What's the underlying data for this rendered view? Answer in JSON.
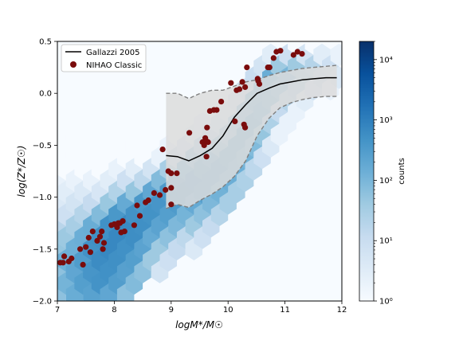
{
  "chart_data": {
    "type": "scatter",
    "title": "",
    "xlabel": "logM*/M☉",
    "ylabel": "log(Z*/Z☉)",
    "xlim": [
      7,
      12
    ],
    "ylim": [
      -2.0,
      0.5
    ],
    "xticks": [
      7,
      8,
      9,
      10,
      11,
      12
    ],
    "xtick_labels": [
      "7",
      "8",
      "9",
      "10",
      "11",
      "12"
    ],
    "yticks": [
      0.5,
      0.0,
      -0.5,
      -1.0,
      -1.5,
      -2.0
    ],
    "ytick_labels": [
      "0.5",
      "0.0",
      "−0.5",
      "−1.0",
      "−1.5",
      "−2.0"
    ],
    "grid": false,
    "legend": {
      "placement": "top-left",
      "entries": [
        {
          "label": "Gallazzi 2005",
          "kind": "line",
          "color": "#000000"
        },
        {
          "label": "NIHAO Classic",
          "kind": "marker",
          "color": "#7a0c0c"
        }
      ]
    },
    "colorbar": {
      "label": "counts",
      "scale": "log",
      "range": [
        1,
        20000
      ],
      "tick_labels": [
        "10⁰",
        "10¹",
        "10²",
        "10³",
        "10⁴"
      ],
      "cmap": "Blues"
    },
    "gallazzi_2005": {
      "median": [
        [
          8.91,
          -0.6
        ],
        [
          9.11,
          -0.61
        ],
        [
          9.31,
          -0.65
        ],
        [
          9.51,
          -0.6
        ],
        [
          9.72,
          -0.53
        ],
        [
          9.91,
          -0.41
        ],
        [
          10.11,
          -0.23
        ],
        [
          10.31,
          -0.11
        ],
        [
          10.51,
          0.0
        ],
        [
          10.72,
          0.05
        ],
        [
          10.91,
          0.09
        ],
        [
          11.11,
          0.11
        ],
        [
          11.31,
          0.13
        ],
        [
          11.51,
          0.14
        ],
        [
          11.72,
          0.15
        ],
        [
          11.91,
          0.15
        ]
      ],
      "p84": [
        [
          8.91,
          0.0
        ],
        [
          9.11,
          0.0
        ],
        [
          9.31,
          -0.05
        ],
        [
          9.51,
          0.0
        ],
        [
          9.72,
          0.03
        ],
        [
          9.91,
          0.03
        ],
        [
          10.11,
          0.07
        ],
        [
          10.31,
          0.11
        ],
        [
          10.51,
          0.13
        ],
        [
          10.72,
          0.17
        ],
        [
          10.91,
          0.2
        ],
        [
          11.11,
          0.22
        ],
        [
          11.31,
          0.24
        ],
        [
          11.51,
          0.25
        ],
        [
          11.72,
          0.26
        ],
        [
          11.91,
          0.27
        ]
      ],
      "p16": [
        [
          8.91,
          -1.11
        ],
        [
          9.11,
          -1.07
        ],
        [
          9.31,
          -1.1
        ],
        [
          9.51,
          -1.03
        ],
        [
          9.72,
          -0.97
        ],
        [
          9.91,
          -0.9
        ],
        [
          10.11,
          -0.8
        ],
        [
          10.31,
          -0.65
        ],
        [
          10.51,
          -0.41
        ],
        [
          10.72,
          -0.24
        ],
        [
          10.91,
          -0.14
        ],
        [
          11.11,
          -0.09
        ],
        [
          11.31,
          -0.06
        ],
        [
          11.51,
          -0.04
        ],
        [
          11.72,
          -0.03
        ],
        [
          11.91,
          -0.03
        ]
      ]
    },
    "nihao_classic": [
      [
        7.05,
        -1.63
      ],
      [
        7.1,
        -1.63
      ],
      [
        7.12,
        -1.57
      ],
      [
        7.2,
        -1.62
      ],
      [
        7.25,
        -1.59
      ],
      [
        7.4,
        -1.5
      ],
      [
        7.45,
        -1.65
      ],
      [
        7.5,
        -1.48
      ],
      [
        7.55,
        -1.39
      ],
      [
        7.58,
        -1.53
      ],
      [
        7.62,
        -1.33
      ],
      [
        7.7,
        -1.42
      ],
      [
        7.75,
        -1.38
      ],
      [
        7.78,
        -1.33
      ],
      [
        7.8,
        -1.5
      ],
      [
        7.82,
        -1.44
      ],
      [
        7.95,
        -1.27
      ],
      [
        8.0,
        -1.26
      ],
      [
        8.05,
        -1.29
      ],
      [
        8.07,
        -1.25
      ],
      [
        8.1,
        -1.25
      ],
      [
        8.12,
        -1.34
      ],
      [
        8.15,
        -1.23
      ],
      [
        8.18,
        -1.33
      ],
      [
        8.35,
        -1.27
      ],
      [
        8.4,
        -1.08
      ],
      [
        8.45,
        -1.18
      ],
      [
        8.55,
        -1.05
      ],
      [
        8.6,
        -1.03
      ],
      [
        8.7,
        -0.96
      ],
      [
        8.8,
        -0.98
      ],
      [
        8.85,
        -0.54
      ],
      [
        8.9,
        -0.93
      ],
      [
        8.95,
        -0.75
      ],
      [
        9.0,
        -0.91
      ],
      [
        9.0,
        -0.77
      ],
      [
        9.0,
        -1.07
      ],
      [
        9.1,
        -0.77
      ],
      [
        9.32,
        -0.38
      ],
      [
        9.55,
        -0.47
      ],
      [
        9.58,
        -0.5
      ],
      [
        9.6,
        -0.43
      ],
      [
        9.62,
        -0.61
      ],
      [
        9.62,
        -0.46
      ],
      [
        9.63,
        -0.33
      ],
      [
        9.65,
        -0.47
      ],
      [
        9.68,
        -0.17
      ],
      [
        9.75,
        -0.16
      ],
      [
        9.8,
        -0.16
      ],
      [
        9.88,
        -0.08
      ],
      [
        10.05,
        0.1
      ],
      [
        10.12,
        -0.27
      ],
      [
        10.15,
        0.03
      ],
      [
        10.2,
        0.04
      ],
      [
        10.25,
        0.11
      ],
      [
        10.28,
        -0.3
      ],
      [
        10.3,
        -0.33
      ],
      [
        10.3,
        0.06
      ],
      [
        10.33,
        0.25
      ],
      [
        10.52,
        0.14
      ],
      [
        10.53,
        0.12
      ],
      [
        10.55,
        0.09
      ],
      [
        10.7,
        0.25
      ],
      [
        10.73,
        0.25
      ],
      [
        10.8,
        0.34
      ],
      [
        10.85,
        0.4
      ],
      [
        10.92,
        0.41
      ],
      [
        11.15,
        0.37
      ],
      [
        11.22,
        0.4
      ],
      [
        11.3,
        0.38
      ]
    ],
    "hexbin_counts": [
      [
        7.0,
        -1.94,
        60
      ],
      [
        7.0,
        -1.72,
        60
      ],
      [
        7.0,
        -1.5,
        50
      ],
      [
        7.0,
        -1.28,
        18
      ],
      [
        7.0,
        -1.06,
        4
      ],
      [
        7.0,
        -0.84,
        2
      ],
      [
        7.0,
        -0.62,
        1
      ],
      [
        7.0,
        -0.4,
        1
      ],
      [
        7.15,
        -1.83,
        110
      ],
      [
        7.15,
        -1.61,
        130
      ],
      [
        7.15,
        -1.39,
        42
      ],
      [
        7.15,
        -1.17,
        8
      ],
      [
        7.15,
        -0.95,
        3
      ],
      [
        7.15,
        -0.73,
        1
      ],
      [
        7.15,
        -0.29,
        1
      ],
      [
        7.3,
        -1.94,
        150
      ],
      [
        7.3,
        -1.72,
        200
      ],
      [
        7.3,
        -1.5,
        130
      ],
      [
        7.3,
        -1.28,
        30
      ],
      [
        7.3,
        -1.06,
        6
      ],
      [
        7.3,
        -0.84,
        2
      ],
      [
        7.45,
        -1.83,
        280
      ],
      [
        7.45,
        -1.61,
        320
      ],
      [
        7.45,
        -1.39,
        140
      ],
      [
        7.45,
        -1.17,
        20
      ],
      [
        7.45,
        -0.95,
        4
      ],
      [
        7.45,
        -0.73,
        1
      ],
      [
        7.6,
        -1.94,
        240
      ],
      [
        7.6,
        -1.72,
        420
      ],
      [
        7.6,
        -1.5,
        480
      ],
      [
        7.6,
        -1.28,
        150
      ],
      [
        7.6,
        -1.06,
        12
      ],
      [
        7.6,
        -0.84,
        2
      ],
      [
        7.75,
        -1.83,
        460
      ],
      [
        7.75,
        -1.61,
        600
      ],
      [
        7.75,
        -1.39,
        520
      ],
      [
        7.75,
        -1.17,
        80
      ],
      [
        7.75,
        -0.95,
        5
      ],
      [
        7.75,
        -0.73,
        1
      ],
      [
        7.9,
        -1.94,
        200
      ],
      [
        7.9,
        -1.72,
        500
      ],
      [
        7.9,
        -1.5,
        700
      ],
      [
        7.9,
        -1.28,
        500
      ],
      [
        7.9,
        -1.06,
        45
      ],
      [
        7.9,
        -0.84,
        3
      ],
      [
        8.05,
        -1.83,
        300
      ],
      [
        8.05,
        -1.61,
        520
      ],
      [
        8.05,
        -1.39,
        700
      ],
      [
        8.05,
        -1.17,
        380
      ],
      [
        8.05,
        -0.95,
        22
      ],
      [
        8.05,
        -0.73,
        2
      ],
      [
        8.2,
        -1.94,
        60
      ],
      [
        8.2,
        -1.72,
        260
      ],
      [
        8.2,
        -1.5,
        500
      ],
      [
        8.2,
        -1.28,
        650
      ],
      [
        8.2,
        -1.06,
        170
      ],
      [
        8.2,
        -0.84,
        8
      ],
      [
        8.2,
        -0.62,
        1
      ],
      [
        8.35,
        -1.83,
        80
      ],
      [
        8.35,
        -1.61,
        280
      ],
      [
        8.35,
        -1.39,
        560
      ],
      [
        8.35,
        -1.17,
        480
      ],
      [
        8.35,
        -0.95,
        50
      ],
      [
        8.35,
        -0.73,
        3
      ],
      [
        8.35,
        -0.51,
        1
      ],
      [
        8.5,
        -1.72,
        60
      ],
      [
        8.5,
        -1.5,
        230
      ],
      [
        8.5,
        -1.28,
        520
      ],
      [
        8.5,
        -1.06,
        380
      ],
      [
        8.5,
        -0.84,
        15
      ],
      [
        8.5,
        -0.62,
        1
      ],
      [
        8.65,
        -1.61,
        40
      ],
      [
        8.65,
        -1.39,
        170
      ],
      [
        8.65,
        -1.17,
        470
      ],
      [
        8.65,
        -0.95,
        200
      ],
      [
        8.65,
        -0.73,
        6
      ],
      [
        8.65,
        -0.51,
        1
      ],
      [
        8.8,
        -1.72,
        6
      ],
      [
        8.8,
        -1.5,
        40
      ],
      [
        8.8,
        -1.28,
        230
      ],
      [
        8.8,
        -1.06,
        420
      ],
      [
        8.8,
        -0.84,
        80
      ],
      [
        8.8,
        -0.62,
        2
      ],
      [
        8.95,
        -1.61,
        8
      ],
      [
        8.95,
        -1.39,
        60
      ],
      [
        8.95,
        -1.17,
        280
      ],
      [
        8.95,
        -0.95,
        340
      ],
      [
        8.95,
        -0.73,
        30
      ],
      [
        8.95,
        -0.51,
        2
      ],
      [
        9.1,
        -1.5,
        12
      ],
      [
        9.1,
        -1.28,
        90
      ],
      [
        9.1,
        -1.06,
        330
      ],
      [
        9.1,
        -0.84,
        220
      ],
      [
        9.1,
        -0.62,
        12
      ],
      [
        9.1,
        -0.4,
        1
      ],
      [
        9.25,
        -1.39,
        15
      ],
      [
        9.25,
        -1.17,
        110
      ],
      [
        9.25,
        -0.95,
        330
      ],
      [
        9.25,
        -0.73,
        150
      ],
      [
        9.25,
        -0.51,
        6
      ],
      [
        9.4,
        -1.5,
        4
      ],
      [
        9.4,
        -1.28,
        40
      ],
      [
        9.4,
        -1.06,
        170
      ],
      [
        9.4,
        -0.84,
        300
      ],
      [
        9.4,
        -0.62,
        70
      ],
      [
        9.4,
        -0.4,
        3
      ],
      [
        9.55,
        -1.39,
        8
      ],
      [
        9.55,
        -1.17,
        60
      ],
      [
        9.55,
        -0.95,
        260
      ],
      [
        9.55,
        -0.73,
        200
      ],
      [
        9.55,
        -0.51,
        25
      ],
      [
        9.55,
        -0.29,
        2
      ],
      [
        9.7,
        -1.28,
        12
      ],
      [
        9.7,
        -1.06,
        90
      ],
      [
        9.7,
        -0.84,
        260
      ],
      [
        9.7,
        -0.62,
        130
      ],
      [
        9.7,
        -0.4,
        10
      ],
      [
        9.85,
        -1.17,
        20
      ],
      [
        9.85,
        -0.95,
        120
      ],
      [
        9.85,
        -0.73,
        230
      ],
      [
        9.85,
        -0.51,
        60
      ],
      [
        9.85,
        -0.29,
        5
      ],
      [
        10.0,
        -1.06,
        30
      ],
      [
        10.0,
        -0.84,
        140
      ],
      [
        10.0,
        -0.62,
        210
      ],
      [
        10.0,
        -0.4,
        40
      ],
      [
        10.0,
        -0.18,
        3
      ],
      [
        10.15,
        -0.95,
        30
      ],
      [
        10.15,
        -0.73,
        130
      ],
      [
        10.15,
        -0.51,
        190
      ],
      [
        10.15,
        -0.29,
        45
      ],
      [
        10.15,
        -0.07,
        4
      ],
      [
        10.3,
        -0.84,
        25
      ],
      [
        10.3,
        -0.62,
        110
      ],
      [
        10.3,
        -0.4,
        190
      ],
      [
        10.3,
        -0.18,
        70
      ],
      [
        10.3,
        0.04,
        6
      ],
      [
        10.45,
        -0.73,
        15
      ],
      [
        10.45,
        -0.51,
        80
      ],
      [
        10.45,
        -0.29,
        190
      ],
      [
        10.45,
        -0.07,
        110
      ],
      [
        10.45,
        0.15,
        10
      ],
      [
        10.6,
        -0.62,
        8
      ],
      [
        10.6,
        -0.4,
        50
      ],
      [
        10.6,
        -0.18,
        160
      ],
      [
        10.6,
        0.04,
        130
      ],
      [
        10.6,
        0.26,
        6
      ],
      [
        10.75,
        -0.51,
        4
      ],
      [
        10.75,
        -0.29,
        25
      ],
      [
        10.75,
        -0.07,
        120
      ],
      [
        10.75,
        0.15,
        150
      ],
      [
        10.75,
        0.37,
        3
      ],
      [
        10.9,
        -0.4,
        2
      ],
      [
        10.9,
        -0.18,
        12
      ],
      [
        10.9,
        0.04,
        90
      ],
      [
        10.9,
        0.26,
        40
      ],
      [
        11.05,
        -0.29,
        2
      ],
      [
        11.05,
        -0.07,
        20
      ],
      [
        11.05,
        0.15,
        100
      ],
      [
        11.05,
        0.37,
        8
      ],
      [
        11.2,
        -0.18,
        2
      ],
      [
        11.2,
        0.04,
        25
      ],
      [
        11.2,
        0.26,
        40
      ],
      [
        11.2,
        0.48,
        1
      ],
      [
        11.35,
        -0.07,
        3
      ],
      [
        11.35,
        0.15,
        30
      ],
      [
        11.35,
        0.37,
        6
      ],
      [
        11.5,
        0.04,
        6
      ],
      [
        11.5,
        0.26,
        20
      ],
      [
        11.5,
        0.48,
        1
      ],
      [
        11.65,
        0.15,
        12
      ],
      [
        11.65,
        0.37,
        3
      ],
      [
        11.8,
        0.04,
        2
      ],
      [
        11.8,
        0.26,
        8
      ],
      [
        11.95,
        0.15,
        4
      ],
      [
        11.95,
        0.37,
        2
      ]
    ]
  }
}
